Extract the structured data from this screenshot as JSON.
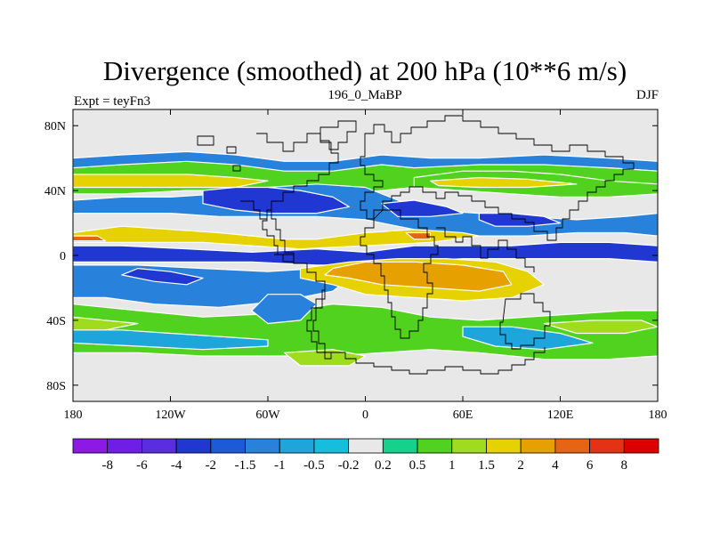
{
  "chart_data": {
    "type": "heatmap",
    "title": "Divergence (smoothed) at 200 hPa (10**6 m/s)",
    "subtitle_left": "Expt = teyFn3",
    "subtitle_center": "196_0_MaBP",
    "subtitle_right": "DJF",
    "x_ticks": [
      {
        "value": -180,
        "label": "180"
      },
      {
        "value": -120,
        "label": "120W"
      },
      {
        "value": -60,
        "label": "60W"
      },
      {
        "value": 0,
        "label": "0"
      },
      {
        "value": 60,
        "label": "60E"
      },
      {
        "value": 120,
        "label": "120E"
      },
      {
        "value": 180,
        "label": "180"
      }
    ],
    "y_ticks": [
      {
        "value": 80,
        "label": "80N"
      },
      {
        "value": 40,
        "label": "40N"
      },
      {
        "value": 0,
        "label": "0"
      },
      {
        "value": -40,
        "label": "40S"
      },
      {
        "value": -80,
        "label": "80S"
      }
    ],
    "xlim": [
      -180,
      180
    ],
    "ylim": [
      -90,
      90
    ],
    "levels": [
      "-8",
      "-6",
      "-4",
      "-2",
      "-1.5",
      "-1",
      "-0.5",
      "-0.2",
      "0.2",
      "0.5",
      "1",
      "1.5",
      "2",
      "4",
      "6",
      "8"
    ],
    "colors": [
      "#8c19e6",
      "#6e1ee6",
      "#5a2de1",
      "#2037d2",
      "#1e5ad7",
      "#2882dc",
      "#1ea5dc",
      "#14bedc",
      "#e8e8e8",
      "#14d28c",
      "#50d21e",
      "#a0dc1e",
      "#e6d200",
      "#e6a000",
      "#e66414",
      "#e63214",
      "#dc0000"
    ],
    "regions": [
      {
        "level": "-1",
        "points": [
          [
            -180,
            60
          ],
          [
            -150,
            62
          ],
          [
            -110,
            64
          ],
          [
            -80,
            62
          ],
          [
            -50,
            58
          ],
          [
            -20,
            58
          ],
          [
            10,
            62
          ],
          [
            40,
            60
          ],
          [
            70,
            60
          ],
          [
            110,
            62
          ],
          [
            150,
            60
          ],
          [
            180,
            58
          ],
          [
            180,
            52
          ],
          [
            150,
            54
          ],
          [
            110,
            54
          ],
          [
            70,
            52
          ],
          [
            40,
            50
          ],
          [
            10,
            52
          ],
          [
            -20,
            48
          ],
          [
            -50,
            48
          ],
          [
            -80,
            52
          ],
          [
            -110,
            54
          ],
          [
            -150,
            54
          ],
          [
            -180,
            52
          ]
        ]
      },
      {
        "level": "0.5",
        "points": [
          [
            -180,
            54
          ],
          [
            -150,
            56
          ],
          [
            -110,
            58
          ],
          [
            -80,
            56
          ],
          [
            -50,
            52
          ],
          [
            -20,
            52
          ],
          [
            10,
            56
          ],
          [
            30,
            54
          ],
          [
            70,
            56
          ],
          [
            110,
            56
          ],
          [
            150,
            54
          ],
          [
            180,
            52
          ],
          [
            180,
            38
          ],
          [
            150,
            40
          ],
          [
            110,
            44
          ],
          [
            70,
            44
          ],
          [
            30,
            42
          ],
          [
            10,
            40
          ],
          [
            -20,
            38
          ],
          [
            -50,
            38
          ],
          [
            -80,
            40
          ],
          [
            -110,
            40
          ],
          [
            -150,
            38
          ],
          [
            -180,
            38
          ]
        ]
      },
      {
        "level": "1.5",
        "points": [
          [
            -180,
            50
          ],
          [
            -150,
            50
          ],
          [
            -110,
            50
          ],
          [
            -80,
            48
          ],
          [
            -60,
            46
          ],
          [
            -80,
            42
          ],
          [
            -110,
            42
          ],
          [
            -150,
            42
          ],
          [
            -180,
            42
          ]
        ]
      },
      {
        "level": "0.5",
        "points": [
          [
            30,
            48
          ],
          [
            60,
            52
          ],
          [
            90,
            52
          ],
          [
            120,
            50
          ],
          [
            150,
            46
          ],
          [
            180,
            44
          ],
          [
            180,
            38
          ],
          [
            150,
            36
          ],
          [
            120,
            36
          ],
          [
            90,
            38
          ],
          [
            60,
            40
          ],
          [
            30,
            42
          ]
        ]
      },
      {
        "level": "1.5",
        "points": [
          [
            40,
            46
          ],
          [
            70,
            48
          ],
          [
            100,
            47
          ],
          [
            130,
            44
          ],
          [
            100,
            42
          ],
          [
            70,
            42
          ],
          [
            45,
            43
          ]
        ]
      },
      {
        "level": "-1",
        "points": [
          [
            -180,
            34
          ],
          [
            -150,
            36
          ],
          [
            -120,
            36
          ],
          [
            -90,
            38
          ],
          [
            -60,
            42
          ],
          [
            -30,
            44
          ],
          [
            0,
            42
          ],
          [
            20,
            34
          ],
          [
            40,
            28
          ],
          [
            70,
            26
          ],
          [
            100,
            24
          ],
          [
            130,
            22
          ],
          [
            160,
            24
          ],
          [
            180,
            26
          ],
          [
            180,
            12
          ],
          [
            160,
            14
          ],
          [
            130,
            14
          ],
          [
            100,
            12
          ],
          [
            70,
            12
          ],
          [
            40,
            14
          ],
          [
            20,
            18
          ],
          [
            0,
            22
          ],
          [
            -30,
            24
          ],
          [
            -60,
            24
          ],
          [
            -90,
            24
          ],
          [
            -120,
            26
          ],
          [
            -150,
            26
          ],
          [
            -180,
            26
          ]
        ]
      },
      {
        "level": "-2",
        "points": [
          [
            -100,
            40
          ],
          [
            -80,
            42
          ],
          [
            -60,
            42
          ],
          [
            -40,
            40
          ],
          [
            -20,
            36
          ],
          [
            -10,
            30
          ],
          [
            -30,
            26
          ],
          [
            -60,
            26
          ],
          [
            -80,
            28
          ],
          [
            -100,
            32
          ]
        ]
      },
      {
        "level": "-2",
        "points": [
          [
            10,
            32
          ],
          [
            30,
            34
          ],
          [
            50,
            30
          ],
          [
            60,
            26
          ],
          [
            40,
            24
          ],
          [
            20,
            24
          ]
        ]
      },
      {
        "level": "-2",
        "points": [
          [
            70,
            26
          ],
          [
            90,
            26
          ],
          [
            110,
            24
          ],
          [
            120,
            20
          ],
          [
            100,
            18
          ],
          [
            80,
            18
          ],
          [
            70,
            22
          ]
        ]
      },
      {
        "level": "1.5",
        "points": [
          [
            -180,
            14
          ],
          [
            -150,
            18
          ],
          [
            -120,
            16
          ],
          [
            -90,
            14
          ],
          [
            -70,
            12
          ],
          [
            -50,
            10
          ],
          [
            -30,
            10
          ],
          [
            0,
            14
          ],
          [
            30,
            16
          ],
          [
            60,
            14
          ],
          [
            70,
            12
          ],
          [
            40,
            8
          ],
          [
            0,
            6
          ],
          [
            -40,
            4
          ],
          [
            -70,
            6
          ],
          [
            -100,
            8
          ],
          [
            -140,
            8
          ],
          [
            -180,
            8
          ]
        ]
      },
      {
        "level": "4",
        "points": [
          [
            -180,
            12
          ],
          [
            -165,
            12
          ],
          [
            -160,
            9
          ],
          [
            -180,
            9
          ]
        ]
      },
      {
        "level": "4",
        "points": [
          [
            25,
            14
          ],
          [
            40,
            14
          ],
          [
            40,
            10
          ],
          [
            30,
            10
          ]
        ]
      },
      {
        "level": "-2",
        "points": [
          [
            -180,
            6
          ],
          [
            -150,
            6
          ],
          [
            -110,
            4
          ],
          [
            -70,
            2
          ],
          [
            -30,
            4
          ],
          [
            0,
            2
          ],
          [
            30,
            6
          ],
          [
            60,
            6
          ],
          [
            90,
            6
          ],
          [
            120,
            8
          ],
          [
            150,
            8
          ],
          [
            180,
            6
          ],
          [
            180,
            -4
          ],
          [
            150,
            -2
          ],
          [
            120,
            -2
          ],
          [
            90,
            -2
          ],
          [
            60,
            -2
          ],
          [
            30,
            -4
          ],
          [
            0,
            -6
          ],
          [
            -30,
            -6
          ],
          [
            -70,
            -4
          ],
          [
            -110,
            -4
          ],
          [
            -150,
            -4
          ],
          [
            -180,
            -4
          ]
        ]
      },
      {
        "level": "-1",
        "points": [
          [
            -180,
            -6
          ],
          [
            -140,
            -6
          ],
          [
            -100,
            -8
          ],
          [
            -60,
            -10
          ],
          [
            -30,
            -8
          ],
          [
            -10,
            -14
          ],
          [
            -20,
            -22
          ],
          [
            -50,
            -28
          ],
          [
            -90,
            -32
          ],
          [
            -130,
            -30
          ],
          [
            -160,
            -26
          ],
          [
            -180,
            -26
          ]
        ]
      },
      {
        "level": "-2",
        "points": [
          [
            -140,
            -8
          ],
          [
            -120,
            -10
          ],
          [
            -100,
            -14
          ],
          [
            -110,
            -18
          ],
          [
            -130,
            -16
          ],
          [
            -150,
            -12
          ]
        ]
      },
      {
        "level": "1.5",
        "points": [
          [
            -40,
            -8
          ],
          [
            -10,
            -4
          ],
          [
            20,
            -2
          ],
          [
            50,
            -2
          ],
          [
            80,
            -4
          ],
          [
            100,
            -10
          ],
          [
            110,
            -18
          ],
          [
            90,
            -26
          ],
          [
            60,
            -28
          ],
          [
            30,
            -26
          ],
          [
            0,
            -24
          ],
          [
            -20,
            -18
          ],
          [
            -40,
            -14
          ]
        ]
      },
      {
        "level": "2",
        "points": [
          [
            -20,
            -8
          ],
          [
            0,
            -4
          ],
          [
            30,
            -4
          ],
          [
            60,
            -6
          ],
          [
            85,
            -10
          ],
          [
            90,
            -18
          ],
          [
            70,
            -22
          ],
          [
            40,
            -20
          ],
          [
            10,
            -18
          ],
          [
            -10,
            -14
          ],
          [
            -25,
            -12
          ]
        ]
      },
      {
        "level": "0.5",
        "points": [
          [
            -180,
            -30
          ],
          [
            -140,
            -34
          ],
          [
            -100,
            -38
          ],
          [
            -60,
            -36
          ],
          [
            -20,
            -30
          ],
          [
            10,
            -32
          ],
          [
            40,
            -38
          ],
          [
            70,
            -40
          ],
          [
            100,
            -38
          ],
          [
            130,
            -36
          ],
          [
            160,
            -34
          ],
          [
            180,
            -34
          ],
          [
            180,
            -62
          ],
          [
            150,
            -64
          ],
          [
            110,
            -64
          ],
          [
            70,
            -60
          ],
          [
            40,
            -58
          ],
          [
            10,
            -60
          ],
          [
            -20,
            -62
          ],
          [
            -60,
            -62
          ],
          [
            -100,
            -62
          ],
          [
            -140,
            -60
          ],
          [
            -180,
            -60
          ]
        ]
      },
      {
        "level": "1",
        "points": [
          [
            -180,
            -38
          ],
          [
            -160,
            -40
          ],
          [
            -140,
            -42
          ],
          [
            -160,
            -46
          ],
          [
            -180,
            -48
          ]
        ]
      },
      {
        "level": "1",
        "points": [
          [
            110,
            -42
          ],
          [
            140,
            -40
          ],
          [
            170,
            -40
          ],
          [
            180,
            -44
          ],
          [
            160,
            -48
          ],
          [
            130,
            -48
          ]
        ]
      },
      {
        "level": "-0.5",
        "points": [
          [
            -180,
            -46
          ],
          [
            -150,
            -46
          ],
          [
            -120,
            -48
          ],
          [
            -90,
            -50
          ],
          [
            -60,
            -52
          ],
          [
            -60,
            -56
          ],
          [
            -100,
            -58
          ],
          [
            -140,
            -56
          ],
          [
            -180,
            -54
          ]
        ]
      },
      {
        "level": "-0.5",
        "points": [
          [
            60,
            -44
          ],
          [
            90,
            -44
          ],
          [
            120,
            -48
          ],
          [
            140,
            -54
          ],
          [
            110,
            -58
          ],
          [
            80,
            -56
          ],
          [
            60,
            -50
          ]
        ]
      },
      {
        "level": "-1",
        "points": [
          [
            -60,
            -24
          ],
          [
            -40,
            -24
          ],
          [
            -30,
            -30
          ],
          [
            -40,
            -40
          ],
          [
            -60,
            -42
          ],
          [
            -70,
            -34
          ]
        ]
      },
      {
        "level": "1",
        "points": [
          [
            -50,
            -60
          ],
          [
            -20,
            -58
          ],
          [
            0,
            -62
          ],
          [
            -10,
            -68
          ],
          [
            -40,
            -68
          ]
        ]
      }
    ]
  }
}
